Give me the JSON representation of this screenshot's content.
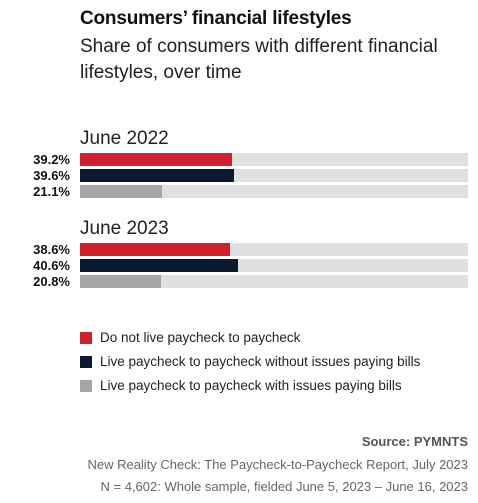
{
  "title": "Consumers’ financial lifestyles",
  "subtitle": "Share of consumers with different financial lifestyles, over time",
  "colors": {
    "not_paycheck": "#d0202e",
    "paycheck_no_issues": "#0b1a2e",
    "paycheck_issues": "#a6a6a6",
    "track": "#e0e0e0"
  },
  "chart_data": {
    "type": "bar",
    "orientation": "horizontal",
    "xlim": [
      0,
      100
    ],
    "categories": [
      "June 2022",
      "June 2023"
    ],
    "series": [
      {
        "name": "Do not live paycheck to paycheck",
        "values": [
          39.2,
          38.6
        ],
        "labels": [
          "39.2%",
          "38.6%"
        ]
      },
      {
        "name": "Live paycheck to paycheck without issues paying bills",
        "values": [
          39.6,
          40.6
        ],
        "labels": [
          "39.6%",
          "40.6%"
        ]
      },
      {
        "name": "Live paycheck to paycheck with issues paying bills",
        "values": [
          21.1,
          20.8
        ],
        "labels": [
          "21.1%",
          "20.8%"
        ]
      }
    ],
    "legend_position": "bottom"
  },
  "source": "Source: PYMNTS",
  "notes": [
    "New Reality Check: The Paycheck-to-Paycheck Report, July 2023",
    "N = 4,602: Whole sample, fielded June 5, 2023 – June 16, 2023"
  ]
}
